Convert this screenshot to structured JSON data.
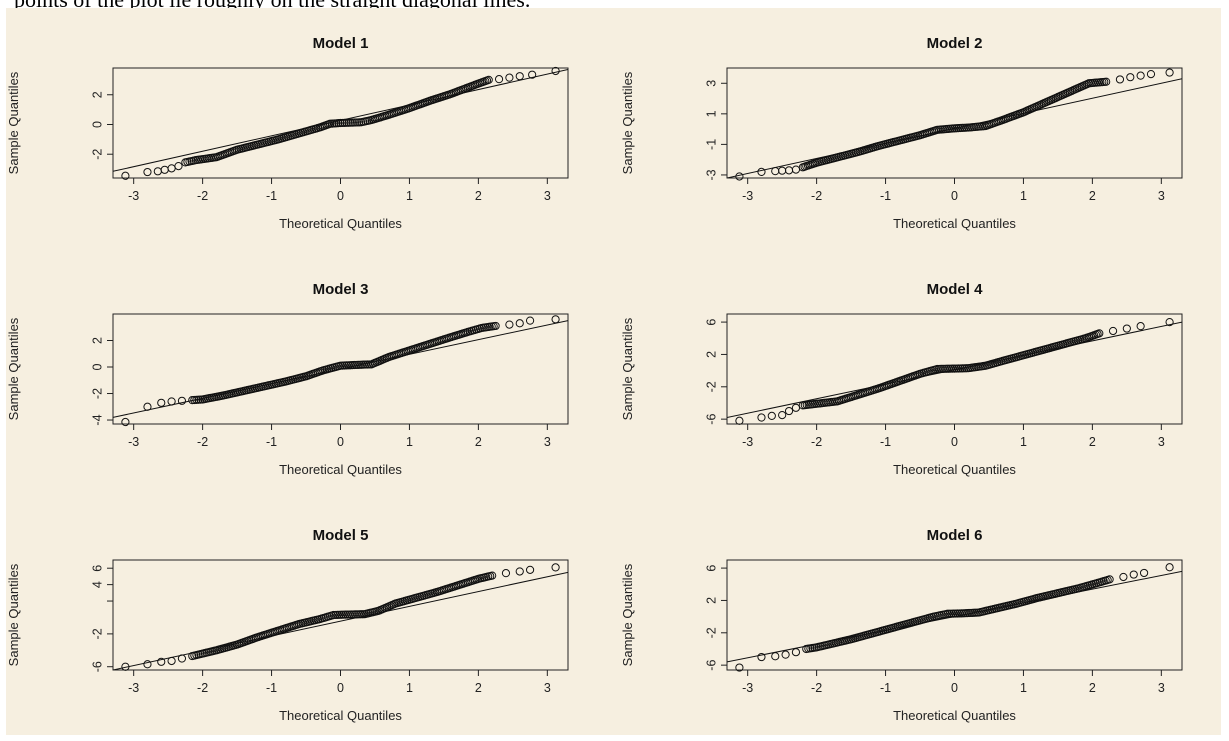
{
  "document": {
    "caption_text": "points of the plot lie roughly on the straight diagonal lines."
  },
  "chart_data": [
    {
      "type": "scatter",
      "title": "Model 1",
      "xlabel": "Theoretical Quantiles",
      "ylabel": "Sample Quantiles",
      "xlim": [
        -3.3,
        3.3
      ],
      "ylim": [
        -3.6,
        3.8
      ],
      "xticks": [
        -3,
        -2,
        -1,
        0,
        1,
        2,
        3
      ],
      "yticks": [
        2,
        0,
        -2
      ],
      "reference_line": {
        "x": [
          -3.3,
          3.3
        ],
        "y": [
          -3.15,
          3.7
        ]
      },
      "points": {
        "x": [
          -3.12,
          -2.8,
          -2.65,
          -2.55,
          -2.45,
          -2.35,
          -2.25,
          -2.1,
          -1.8,
          -1.5,
          -1.2,
          -0.9,
          -0.6,
          -0.3,
          -0.15,
          0,
          0.15,
          0.3,
          0.45,
          0.7,
          1.0,
          1.3,
          1.6,
          1.8,
          2.0,
          2.15,
          2.3,
          2.45,
          2.6,
          2.78,
          3.12
        ],
        "y": [
          -3.45,
          -3.2,
          -3.15,
          -3.05,
          -2.95,
          -2.8,
          -2.55,
          -2.4,
          -2.2,
          -1.7,
          -1.35,
          -1.0,
          -0.6,
          -0.2,
          0.05,
          0.1,
          0.12,
          0.15,
          0.3,
          0.65,
          1.1,
          1.6,
          2.05,
          2.4,
          2.75,
          3.0,
          3.05,
          3.15,
          3.25,
          3.35,
          3.6
        ]
      }
    },
    {
      "type": "scatter",
      "title": "Model 2",
      "xlabel": "Theoretical Quantiles",
      "ylabel": "Sample Quantiles",
      "xlim": [
        -3.3,
        3.3
      ],
      "ylim": [
        -3.2,
        4.0
      ],
      "xticks": [
        -3,
        -2,
        -1,
        0,
        1,
        2,
        3
      ],
      "yticks": [
        3,
        1,
        -1,
        -3
      ],
      "reference_line": {
        "x": [
          -3.3,
          3.3
        ],
        "y": [
          -3.2,
          3.3
        ]
      },
      "points": {
        "x": [
          -3.12,
          -2.8,
          -2.6,
          -2.5,
          -2.4,
          -2.3,
          -2.2,
          -2.0,
          -1.7,
          -1.4,
          -1.1,
          -0.8,
          -0.5,
          -0.25,
          0,
          0.2,
          0.45,
          0.7,
          1.0,
          1.25,
          1.5,
          1.75,
          1.95,
          2.2,
          2.4,
          2.55,
          2.7,
          2.85,
          3.12
        ],
        "y": [
          -3.1,
          -2.8,
          -2.75,
          -2.72,
          -2.7,
          -2.65,
          -2.5,
          -2.2,
          -1.85,
          -1.5,
          -1.1,
          -0.75,
          -0.4,
          -0.05,
          0.05,
          0.1,
          0.2,
          0.6,
          1.1,
          1.6,
          2.1,
          2.6,
          3.0,
          3.1,
          3.25,
          3.4,
          3.5,
          3.6,
          3.7
        ]
      }
    },
    {
      "type": "scatter",
      "title": "Model 3",
      "xlabel": "Theoretical Quantiles",
      "ylabel": "Sample Quantiles",
      "xlim": [
        -3.3,
        3.3
      ],
      "ylim": [
        -4.3,
        4.0
      ],
      "xticks": [
        -3,
        -2,
        -1,
        0,
        1,
        2,
        3
      ],
      "yticks": [
        2,
        0,
        -2,
        -4
      ],
      "reference_line": {
        "x": [
          -3.3,
          3.3
        ],
        "y": [
          -3.8,
          3.5
        ]
      },
      "points": {
        "x": [
          -3.12,
          -2.8,
          -2.6,
          -2.45,
          -2.3,
          -2.15,
          -2.0,
          -1.7,
          -1.4,
          -1.1,
          -0.8,
          -0.5,
          -0.25,
          0,
          0.2,
          0.45,
          0.7,
          1.0,
          1.3,
          1.6,
          1.85,
          2.05,
          2.25,
          2.45,
          2.6,
          2.75,
          3.12
        ],
        "y": [
          -4.15,
          -3.0,
          -2.7,
          -2.6,
          -2.55,
          -2.5,
          -2.45,
          -2.15,
          -1.8,
          -1.45,
          -1.1,
          -0.7,
          -0.25,
          0.1,
          0.15,
          0.2,
          0.75,
          1.25,
          1.75,
          2.25,
          2.65,
          2.95,
          3.1,
          3.2,
          3.3,
          3.5,
          3.6
        ]
      }
    },
    {
      "type": "scatter",
      "title": "Model 4",
      "xlabel": "Theoretical Quantiles",
      "ylabel": "Sample Quantiles",
      "xlim": [
        -3.3,
        3.3
      ],
      "ylim": [
        -6.6,
        7.0
      ],
      "xticks": [
        -3,
        -2,
        -1,
        0,
        1,
        2,
        3
      ],
      "yticks": [
        6,
        2,
        -2,
        -6
      ],
      "reference_line": {
        "x": [
          -3.3,
          3.3
        ],
        "y": [
          -5.8,
          6.0
        ]
      },
      "points": {
        "x": [
          -3.12,
          -2.8,
          -2.65,
          -2.5,
          -2.4,
          -2.3,
          -2.2,
          -2.0,
          -1.7,
          -1.4,
          -1.1,
          -0.8,
          -0.5,
          -0.25,
          0,
          0.2,
          0.45,
          0.7,
          1.0,
          1.3,
          1.6,
          1.9,
          2.1,
          2.3,
          2.5,
          2.7,
          3.12
        ],
        "y": [
          -6.2,
          -5.8,
          -5.6,
          -5.5,
          -5.0,
          -4.6,
          -4.3,
          -4.1,
          -3.8,
          -3.0,
          -2.2,
          -1.3,
          -0.4,
          0.2,
          0.25,
          0.3,
          0.6,
          1.2,
          1.9,
          2.6,
          3.3,
          4.0,
          4.6,
          4.9,
          5.2,
          5.5,
          6.0
        ]
      }
    },
    {
      "type": "scatter",
      "title": "Model 5",
      "xlabel": "Theoretical Quantiles",
      "ylabel": "Sample Quantiles",
      "xlim": [
        -3.3,
        3.3
      ],
      "ylim": [
        -6.4,
        7.0
      ],
      "xticks": [
        -3,
        -2,
        -1,
        0,
        1,
        2,
        3
      ],
      "yticks": [
        6,
        4,
        2,
        -2,
        -6
      ],
      "ytick_labels": [
        "6",
        "4",
        "",
        "-2",
        "-6"
      ],
      "reference_line": {
        "x": [
          -3.3,
          3.3
        ],
        "y": [
          -6.4,
          5.5
        ]
      },
      "points": {
        "x": [
          -3.12,
          -2.8,
          -2.6,
          -2.45,
          -2.3,
          -2.15,
          -2.0,
          -1.8,
          -1.5,
          -1.2,
          -0.9,
          -0.6,
          -0.3,
          -0.1,
          0.1,
          0.35,
          0.55,
          0.8,
          1.1,
          1.4,
          1.7,
          2.0,
          2.2,
          2.4,
          2.6,
          2.75,
          3.12
        ],
        "y": [
          -6.0,
          -5.7,
          -5.4,
          -5.3,
          -5.0,
          -4.7,
          -4.4,
          -4.0,
          -3.3,
          -2.4,
          -1.6,
          -0.8,
          -0.2,
          0.3,
          0.35,
          0.4,
          0.8,
          1.7,
          2.4,
          3.1,
          3.9,
          4.7,
          5.1,
          5.4,
          5.6,
          5.8,
          6.1
        ]
      }
    },
    {
      "type": "scatter",
      "title": "Model 6",
      "xlabel": "Theoretical Quantiles",
      "ylabel": "Sample Quantiles",
      "xlim": [
        -3.3,
        3.3
      ],
      "ylim": [
        -6.6,
        7.0
      ],
      "xticks": [
        -3,
        -2,
        -1,
        0,
        1,
        2,
        3
      ],
      "yticks": [
        6,
        2,
        -2,
        -6
      ],
      "reference_line": {
        "x": [
          -3.3,
          3.3
        ],
        "y": [
          -5.6,
          5.6
        ]
      },
      "points": {
        "x": [
          -3.12,
          -2.8,
          -2.6,
          -2.45,
          -2.3,
          -2.15,
          -2.0,
          -1.8,
          -1.5,
          -1.2,
          -0.9,
          -0.6,
          -0.3,
          -0.1,
          0.1,
          0.35,
          0.6,
          0.9,
          1.2,
          1.5,
          1.8,
          2.05,
          2.25,
          2.45,
          2.6,
          2.75,
          3.12
        ],
        "y": [
          -6.3,
          -5.0,
          -4.9,
          -4.7,
          -4.4,
          -4.0,
          -3.8,
          -3.4,
          -2.8,
          -2.1,
          -1.4,
          -0.7,
          0.0,
          0.35,
          0.4,
          0.5,
          1.0,
          1.6,
          2.3,
          2.9,
          3.5,
          4.1,
          4.6,
          4.9,
          5.2,
          5.4,
          6.1
        ]
      }
    }
  ]
}
